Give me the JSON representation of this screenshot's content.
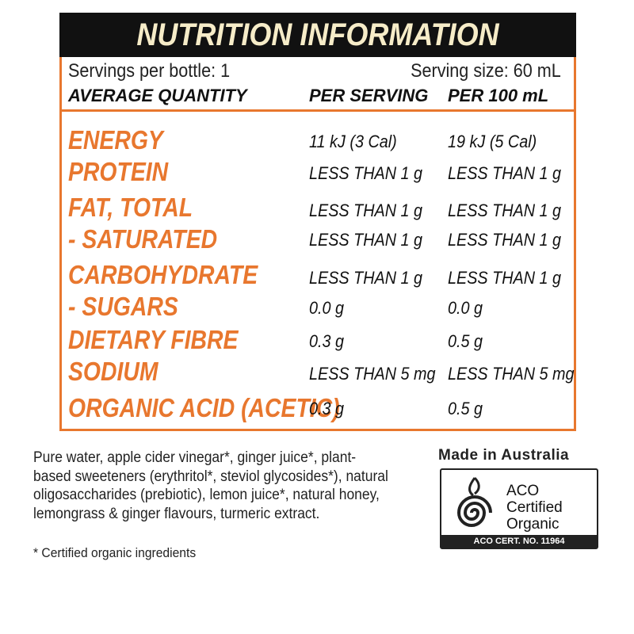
{
  "header": {
    "title": "NUTRITION INFORMATION"
  },
  "serving": {
    "per_bottle": "Servings per bottle: 1",
    "size": "Serving size: 60 mL"
  },
  "columns": {
    "quantity": "AVERAGE QUANTITY",
    "per_serving": "PER SERVING",
    "per_100": "PER 100 mL"
  },
  "rows": [
    {
      "name": "ENERGY",
      "per_serving": "11 kJ (3 Cal)",
      "per_100": "19 kJ (5 Cal)"
    },
    {
      "name": "PROTEIN",
      "per_serving": "LESS THAN 1 g",
      "per_100": "LESS THAN 1 g"
    },
    {
      "name": "FAT, TOTAL",
      "per_serving": "LESS THAN 1 g",
      "per_100": "LESS THAN 1 g"
    },
    {
      "name": "- SATURATED",
      "per_serving": "LESS THAN 1 g",
      "per_100": "LESS THAN 1 g"
    },
    {
      "name": "CARBOHYDRATE",
      "per_serving": "LESS THAN 1 g",
      "per_100": "LESS THAN 1 g"
    },
    {
      "name": "- SUGARS",
      "per_serving": "0.0 g",
      "per_100": "0.0 g"
    },
    {
      "name": "DIETARY FIBRE",
      "per_serving": "0.3 g",
      "per_100": "0.5 g"
    },
    {
      "name": "SODIUM",
      "per_serving": "LESS THAN 5 mg",
      "per_100": "LESS THAN 5 mg"
    },
    {
      "name": "ORGANIC ACID (ACETIC)",
      "per_serving": "0.3 g",
      "per_100": "0.5 g"
    }
  ],
  "ingredients": {
    "lines": [
      "Pure water, apple cider vinegar*, ginger juice*, plant-",
      "based sweeteners (erythritol*, steviol glycosides*), natural",
      "oligosaccharides (prebiotic), lemon juice*, natural honey,",
      "lemongrass & ginger flavours, turmeric extract."
    ],
    "footnote": "* Certified organic ingredients"
  },
  "origin": {
    "made_in": "Made in Australia"
  },
  "certification": {
    "line1": "ACO",
    "line2": "Certified",
    "line3": "Organic",
    "cert_no": "ACO CERT. NO. 11964"
  },
  "colors": {
    "accent": "#e8772e",
    "header_bg": "#111111",
    "header_text": "#f6ecc8"
  }
}
